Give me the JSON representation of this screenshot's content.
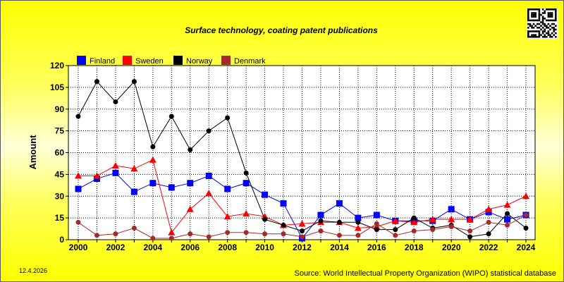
{
  "chart_data": {
    "type": "line",
    "title": "Surface technology, coating patent publications",
    "ylabel": "Amount",
    "xlabel": "",
    "ylim": [
      0,
      120
    ],
    "yticks": [
      0,
      15,
      30,
      45,
      60,
      75,
      90,
      105,
      120
    ],
    "xlim": [
      2000,
      2024
    ],
    "xticks": [
      2000,
      2002,
      2004,
      2006,
      2008,
      2010,
      2012,
      2014,
      2016,
      2018,
      2020,
      2022,
      2024
    ],
    "x": [
      2000,
      2001,
      2002,
      2003,
      2004,
      2005,
      2006,
      2007,
      2008,
      2009,
      2010,
      2011,
      2012,
      2013,
      2014,
      2015,
      2016,
      2017,
      2018,
      2019,
      2020,
      2021,
      2022,
      2023,
      2024
    ],
    "grid": true,
    "legend_position": "top-left",
    "series": [
      {
        "name": "Finland",
        "color": "#0000ff",
        "marker": "square",
        "values": [
          35,
          42,
          46,
          33,
          39,
          36,
          39,
          44,
          35,
          39,
          31,
          25,
          1,
          17,
          25,
          15,
          17,
          13,
          13,
          13,
          21,
          14,
          19,
          14,
          17
        ]
      },
      {
        "name": "Sweden",
        "color": "#ff0000",
        "marker": "triangle",
        "values": [
          44,
          44,
          51,
          49,
          55,
          5,
          21,
          32,
          16,
          18,
          16,
          10,
          11,
          12,
          12,
          8,
          9,
          13,
          12,
          14,
          14,
          14,
          21,
          24,
          30
        ]
      },
      {
        "name": "Norway",
        "color": "#000000",
        "marker": "circle",
        "values": [
          85,
          109,
          95,
          109,
          64,
          85,
          62,
          75,
          84,
          46,
          14,
          10,
          6,
          13,
          12,
          12,
          7,
          7,
          15,
          8,
          10,
          2,
          4,
          18,
          8
        ]
      },
      {
        "name": "Denmark",
        "color": "#a52a2a",
        "marker": "circle",
        "values": [
          12,
          3,
          4,
          8,
          1,
          1,
          4,
          2,
          5,
          5,
          4,
          4,
          2,
          6,
          3,
          3,
          11,
          3,
          6,
          7,
          9,
          6,
          12,
          10,
          17
        ]
      }
    ]
  },
  "footer": {
    "date": "12.4.2026",
    "source": "Source: World Intellectual Property Organization (WIPO) statistical database"
  },
  "icons": {
    "qr": "qr-code-icon"
  }
}
